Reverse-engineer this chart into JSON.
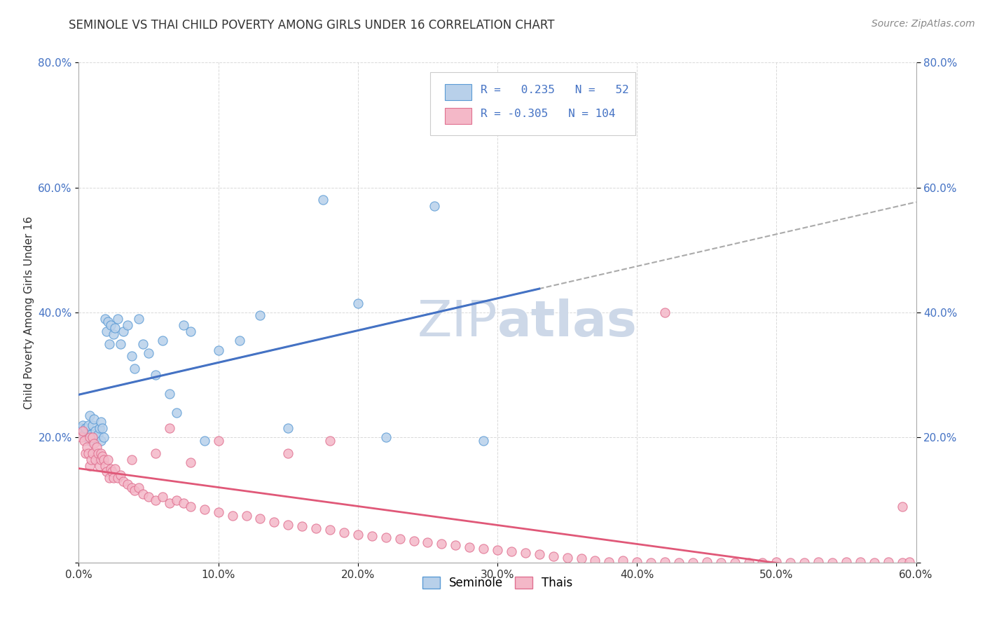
{
  "title": "SEMINOLE VS THAI CHILD POVERTY AMONG GIRLS UNDER 16 CORRELATION CHART",
  "source": "Source: ZipAtlas.com",
  "ylabel": "Child Poverty Among Girls Under 16",
  "xlim": [
    0.0,
    0.6
  ],
  "ylim": [
    0.0,
    0.8
  ],
  "xtick_vals": [
    0.0,
    0.1,
    0.2,
    0.3,
    0.4,
    0.5,
    0.6
  ],
  "ytick_vals": [
    0.0,
    0.2,
    0.4,
    0.6,
    0.8
  ],
  "ytick_labels": [
    "",
    "20.0%",
    "40.0%",
    "60.0%",
    "80.0%"
  ],
  "seminole_R": 0.235,
  "seminole_N": 52,
  "thai_R": -0.305,
  "thai_N": 104,
  "seminole_fill": "#b8d0ea",
  "seminole_edge": "#5b9bd5",
  "thai_fill": "#f4b8c8",
  "thai_edge": "#e07090",
  "blue_line": "#4472c4",
  "pink_line": "#e05878",
  "dashed_line": "#aaaaaa",
  "watermark_color": "#cdd8e8",
  "grid_color": "#d0d0d0",
  "title_color": "#333333",
  "axis_label_color": "#333333",
  "tick_color_blue": "#4472c4",
  "source_color": "#888888",
  "seminole_x": [
    0.002,
    0.003,
    0.004,
    0.005,
    0.006,
    0.007,
    0.008,
    0.008,
    0.009,
    0.01,
    0.01,
    0.011,
    0.012,
    0.013,
    0.014,
    0.015,
    0.016,
    0.016,
    0.017,
    0.018,
    0.019,
    0.02,
    0.021,
    0.022,
    0.023,
    0.025,
    0.026,
    0.028,
    0.03,
    0.032,
    0.035,
    0.038,
    0.04,
    0.043,
    0.046,
    0.05,
    0.055,
    0.06,
    0.065,
    0.07,
    0.075,
    0.08,
    0.09,
    0.1,
    0.115,
    0.13,
    0.15,
    0.175,
    0.2,
    0.22,
    0.255,
    0.29
  ],
  "seminole_y": [
    0.215,
    0.22,
    0.205,
    0.215,
    0.2,
    0.22,
    0.195,
    0.235,
    0.205,
    0.22,
    0.2,
    0.23,
    0.21,
    0.2,
    0.205,
    0.215,
    0.225,
    0.195,
    0.215,
    0.2,
    0.39,
    0.37,
    0.385,
    0.35,
    0.38,
    0.365,
    0.375,
    0.39,
    0.35,
    0.37,
    0.38,
    0.33,
    0.31,
    0.39,
    0.35,
    0.335,
    0.3,
    0.355,
    0.27,
    0.24,
    0.38,
    0.37,
    0.195,
    0.34,
    0.355,
    0.395,
    0.215,
    0.58,
    0.415,
    0.2,
    0.57,
    0.195
  ],
  "thai_x": [
    0.002,
    0.003,
    0.004,
    0.005,
    0.006,
    0.007,
    0.008,
    0.008,
    0.009,
    0.01,
    0.01,
    0.011,
    0.012,
    0.013,
    0.014,
    0.015,
    0.016,
    0.016,
    0.017,
    0.018,
    0.019,
    0.02,
    0.021,
    0.022,
    0.023,
    0.024,
    0.025,
    0.026,
    0.028,
    0.03,
    0.032,
    0.035,
    0.038,
    0.04,
    0.043,
    0.046,
    0.05,
    0.055,
    0.06,
    0.065,
    0.07,
    0.075,
    0.08,
    0.09,
    0.1,
    0.11,
    0.12,
    0.13,
    0.14,
    0.15,
    0.16,
    0.17,
    0.18,
    0.19,
    0.2,
    0.21,
    0.22,
    0.23,
    0.24,
    0.25,
    0.26,
    0.27,
    0.28,
    0.29,
    0.3,
    0.31,
    0.32,
    0.33,
    0.34,
    0.35,
    0.36,
    0.37,
    0.38,
    0.39,
    0.4,
    0.41,
    0.42,
    0.43,
    0.44,
    0.45,
    0.46,
    0.47,
    0.48,
    0.49,
    0.5,
    0.51,
    0.52,
    0.53,
    0.54,
    0.55,
    0.56,
    0.57,
    0.58,
    0.59,
    0.595,
    0.038,
    0.055,
    0.065,
    0.08,
    0.1,
    0.15,
    0.18,
    0.42,
    0.59
  ],
  "thai_y": [
    0.2,
    0.21,
    0.195,
    0.175,
    0.185,
    0.175,
    0.155,
    0.2,
    0.165,
    0.175,
    0.2,
    0.19,
    0.165,
    0.185,
    0.175,
    0.155,
    0.165,
    0.175,
    0.17,
    0.165,
    0.155,
    0.145,
    0.165,
    0.135,
    0.15,
    0.145,
    0.135,
    0.15,
    0.135,
    0.14,
    0.13,
    0.125,
    0.12,
    0.115,
    0.12,
    0.11,
    0.105,
    0.1,
    0.105,
    0.095,
    0.1,
    0.095,
    0.09,
    0.085,
    0.08,
    0.075,
    0.075,
    0.07,
    0.065,
    0.06,
    0.058,
    0.055,
    0.052,
    0.048,
    0.045,
    0.042,
    0.04,
    0.038,
    0.035,
    0.032,
    0.03,
    0.028,
    0.025,
    0.022,
    0.02,
    0.018,
    0.015,
    0.013,
    0.01,
    0.008,
    0.006,
    0.003,
    0.001,
    0.003,
    0.001,
    0.0,
    0.001,
    0.0,
    0.0,
    0.001,
    0.0,
    0.0,
    0.0,
    0.0,
    0.001,
    0.0,
    0.0,
    0.001,
    0.0,
    0.001,
    0.001,
    0.0,
    0.001,
    0.0,
    0.001,
    0.165,
    0.175,
    0.215,
    0.16,
    0.195,
    0.175,
    0.195,
    0.4,
    0.09
  ]
}
